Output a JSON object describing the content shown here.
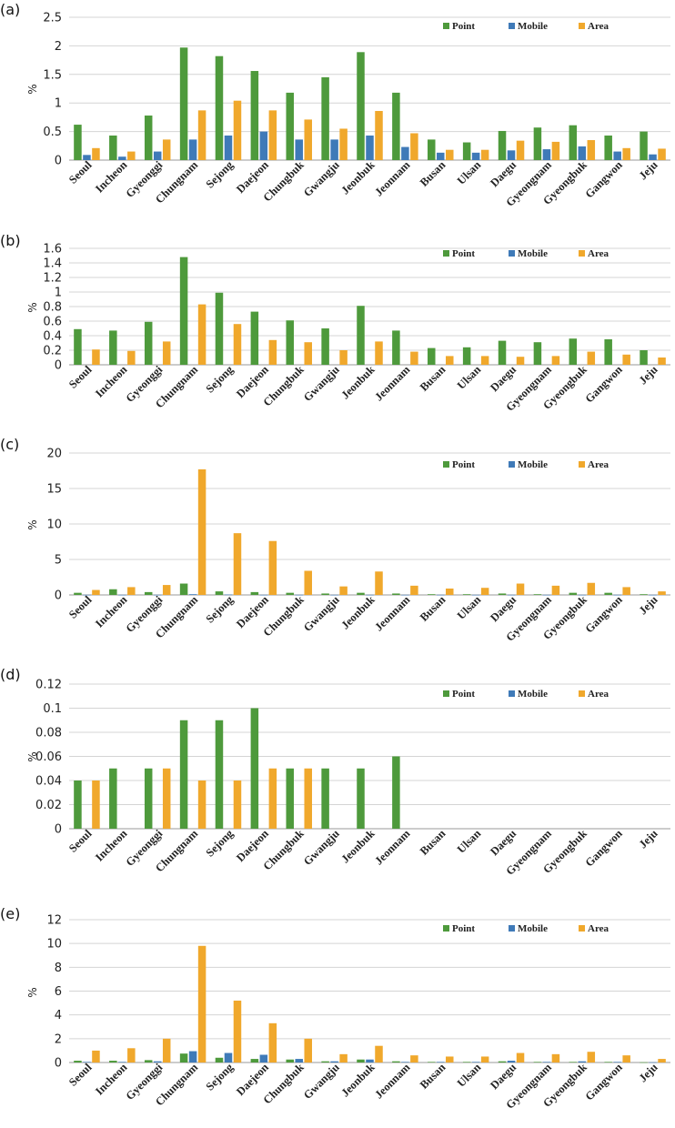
{
  "colors": {
    "point": "#4e9a3c",
    "mobile": "#3f7ab8",
    "area": "#f0a82c",
    "grid": "#d4d4d4",
    "axis": "#9a9a9a"
  },
  "categories": [
    "Seoul",
    "Incheon",
    "Gyeonggi",
    "Chungnam",
    "Sejong",
    "Daejeon",
    "Chungbuk",
    "Gwangju",
    "Jeonbuk",
    "Jeonnam",
    "Busan",
    "Ulsan",
    "Daegu",
    "Gyeongnam",
    "Gyeongbuk",
    "Gangwon",
    "Jeju"
  ],
  "legend": [
    "Point",
    "Mobile",
    "Area"
  ],
  "chart_data": [
    {
      "panel": "(a)",
      "type": "bar",
      "ylabel": "%",
      "ylim": [
        0,
        2.5
      ],
      "yticks": [
        "0",
        "0.5",
        "1",
        "1.5",
        "2",
        "2.5"
      ],
      "series": [
        {
          "name": "Point",
          "values": [
            0.62,
            0.43,
            0.78,
            1.97,
            1.82,
            1.56,
            1.18,
            1.45,
            1.89,
            1.18,
            0.36,
            0.31,
            0.51,
            0.57,
            0.61,
            0.43,
            0.5
          ]
        },
        {
          "name": "Mobile",
          "values": [
            0.09,
            0.06,
            0.15,
            0.36,
            0.43,
            0.5,
            0.36,
            0.36,
            0.43,
            0.23,
            0.13,
            0.13,
            0.17,
            0.19,
            0.24,
            0.15,
            0.1
          ]
        },
        {
          "name": "Area",
          "values": [
            0.21,
            0.15,
            0.36,
            0.87,
            1.04,
            0.87,
            0.71,
            0.55,
            0.86,
            0.47,
            0.18,
            0.18,
            0.34,
            0.32,
            0.35,
            0.21,
            0.2
          ]
        }
      ]
    },
    {
      "panel": "(b)",
      "type": "bar",
      "ylabel": "%",
      "ylim": [
        0,
        1.6
      ],
      "yticks": [
        "0",
        "0.2",
        "0.4",
        "0.6",
        "0.8",
        "1",
        "1.2",
        "1.4",
        "1.6"
      ],
      "series": [
        {
          "name": "Point",
          "values": [
            0.49,
            0.47,
            0.59,
            1.48,
            0.99,
            0.73,
            0.61,
            0.5,
            0.81,
            0.47,
            0.23,
            0.24,
            0.33,
            0.31,
            0.36,
            0.35,
            0.2
          ]
        },
        {
          "name": "Mobile",
          "values": [
            0,
            0,
            0,
            0,
            0,
            0,
            0,
            0,
            0,
            0,
            0,
            0,
            0,
            0,
            0,
            0,
            0
          ]
        },
        {
          "name": "Area",
          "values": [
            0.21,
            0.19,
            0.32,
            0.83,
            0.56,
            0.34,
            0.31,
            0.2,
            0.32,
            0.18,
            0.12,
            0.12,
            0.11,
            0.12,
            0.18,
            0.14,
            0.1
          ]
        }
      ]
    },
    {
      "panel": "(c)",
      "type": "bar",
      "ylabel": "%",
      "ylim": [
        0,
        20
      ],
      "yticks": [
        "0",
        "5",
        "10",
        "15",
        "20"
      ],
      "series": [
        {
          "name": "Point",
          "values": [
            0.3,
            0.8,
            0.4,
            1.6,
            0.5,
            0.4,
            0.3,
            0.2,
            0.3,
            0.2,
            0.1,
            0.1,
            0.2,
            0.1,
            0.3,
            0.3,
            0.1
          ]
        },
        {
          "name": "Mobile",
          "values": [
            0.02,
            0.02,
            0.02,
            0.1,
            0.05,
            0.02,
            0.02,
            0.02,
            0.02,
            0.02,
            0.02,
            0.02,
            0.02,
            0.02,
            0.02,
            0.02,
            0.02
          ]
        },
        {
          "name": "Area",
          "values": [
            0.7,
            1.1,
            1.4,
            17.7,
            8.7,
            7.6,
            3.4,
            1.2,
            3.3,
            1.3,
            0.9,
            1.0,
            1.6,
            1.3,
            1.7,
            1.1,
            0.5
          ]
        }
      ]
    },
    {
      "panel": "(d)",
      "type": "bar",
      "ylabel": "%",
      "ylim": [
        0,
        0.12
      ],
      "yticks": [
        "0",
        "0.02",
        "0.04",
        "0.06",
        "0.08",
        "0.1",
        "0.12"
      ],
      "series": [
        {
          "name": "Point",
          "values": [
            0.04,
            0.05,
            0.05,
            0.09,
            0.09,
            0.1,
            0.05,
            0.05,
            0.05,
            0.06,
            0,
            0,
            0,
            0,
            0,
            0,
            0
          ]
        },
        {
          "name": "Mobile",
          "values": [
            0,
            0,
            0,
            0,
            0,
            0,
            0,
            0,
            0,
            0,
            0,
            0,
            0,
            0,
            0,
            0,
            0
          ]
        },
        {
          "name": "Area",
          "values": [
            0.04,
            0,
            0.05,
            0.04,
            0.04,
            0.05,
            0.05,
            0,
            0,
            0,
            0,
            0,
            0,
            0,
            0,
            0,
            0
          ]
        }
      ]
    },
    {
      "panel": "(e)",
      "type": "bar",
      "ylabel": "%",
      "ylim": [
        0,
        12
      ],
      "yticks": [
        "0",
        "2",
        "4",
        "6",
        "8",
        "10",
        "12"
      ],
      "series": [
        {
          "name": "Point",
          "values": [
            0.15,
            0.15,
            0.2,
            0.75,
            0.4,
            0.3,
            0.25,
            0.1,
            0.25,
            0.1,
            0.05,
            0.05,
            0.1,
            0.05,
            0.05,
            0.05,
            0.02
          ]
        },
        {
          "name": "Mobile",
          "values": [
            0.05,
            0.05,
            0.1,
            0.95,
            0.8,
            0.65,
            0.3,
            0.1,
            0.25,
            0.05,
            0.05,
            0.05,
            0.15,
            0.05,
            0.1,
            0.05,
            0.02
          ]
        },
        {
          "name": "Area",
          "values": [
            1.0,
            1.2,
            2.0,
            9.8,
            5.2,
            3.3,
            2.0,
            0.7,
            1.4,
            0.6,
            0.5,
            0.5,
            0.8,
            0.7,
            0.9,
            0.6,
            0.3
          ]
        }
      ]
    }
  ]
}
